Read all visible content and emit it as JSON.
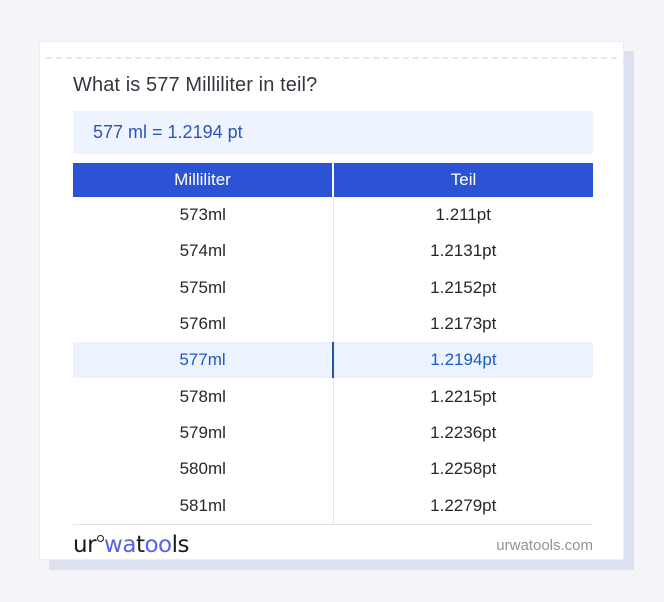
{
  "card": {
    "title": "What is 577 Milliliter in teil?",
    "result": "577 ml = 1.2194 pt"
  },
  "table": {
    "headers": [
      "Milliliter",
      "Teil"
    ],
    "rows": [
      {
        "ml": "573ml",
        "teil": "1.211pt",
        "highlighted": false
      },
      {
        "ml": "574ml",
        "teil": "1.2131pt",
        "highlighted": false
      },
      {
        "ml": "575ml",
        "teil": "1.2152pt",
        "highlighted": false
      },
      {
        "ml": "576ml",
        "teil": "1.2173pt",
        "highlighted": false
      },
      {
        "ml": "577ml",
        "teil": "1.2194pt",
        "highlighted": true
      },
      {
        "ml": "578ml",
        "teil": "1.2215pt",
        "highlighted": false
      },
      {
        "ml": "579ml",
        "teil": "1.2236pt",
        "highlighted": false
      },
      {
        "ml": "580ml",
        "teil": "1.2258pt",
        "highlighted": false
      },
      {
        "ml": "581ml",
        "teil": "1.2279pt",
        "highlighted": false
      }
    ]
  },
  "footer": {
    "logo_segments": [
      {
        "text": "ur",
        "color": "#1a1b1e",
        "ring_after": true
      },
      {
        "text": "wa",
        "color": "#5a60e8",
        "ring_after": false
      },
      {
        "text": "t",
        "color": "#1a1b1e",
        "ring_after": false
      },
      {
        "text": "oo",
        "color": "#5a60e8",
        "ring_after": false
      },
      {
        "text": "ls",
        "color": "#1a1b1e",
        "ring_after": false
      }
    ],
    "site": "urwatools.com"
  },
  "colors": {
    "page_bg": "#f3f5f9",
    "card_bg": "#ffffff",
    "card_shadow": "#dce1ef",
    "table_header_bg": "#2b53d3",
    "table_header_text": "#ffffff",
    "row_text": "#24282e",
    "highlight_bg": "#ecf3fe",
    "highlight_text": "#1d5ac6",
    "highlight_divider": "#1b57b5",
    "result_bg": "#edf4fd",
    "result_text": "#2d55be",
    "logo_blue": "#5a60e8",
    "site_text": "#8e939e"
  }
}
